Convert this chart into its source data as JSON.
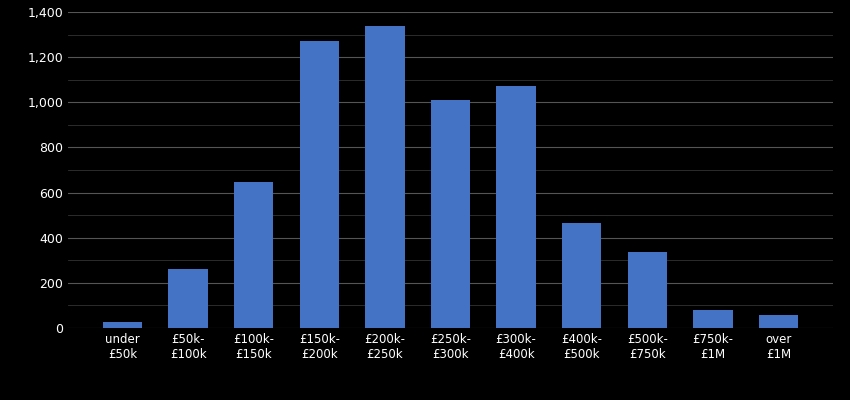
{
  "categories": [
    "under\n£50k",
    "£50k-\n£100k",
    "£100k-\n£150k",
    "£150k-\n£200k",
    "£200k-\n£250k",
    "£250k-\n£300k",
    "£300k-\n£400k",
    "£400k-\n£500k",
    "£500k-\n£750k",
    "£750k-\n£1M",
    "over\n£1M"
  ],
  "values": [
    25,
    263,
    645,
    1270,
    1340,
    1010,
    1070,
    465,
    335,
    80,
    58
  ],
  "bar_color": "#4472C4",
  "background_color": "#000000",
  "text_color": "#ffffff",
  "major_grid_color": "#555555",
  "minor_grid_color": "#333333",
  "ylim": [
    0,
    1400
  ],
  "yticks_major": [
    0,
    200,
    400,
    600,
    800,
    1000,
    1200,
    1400
  ],
  "yticks_minor": [
    100,
    300,
    500,
    700,
    900,
    1100,
    1300
  ]
}
